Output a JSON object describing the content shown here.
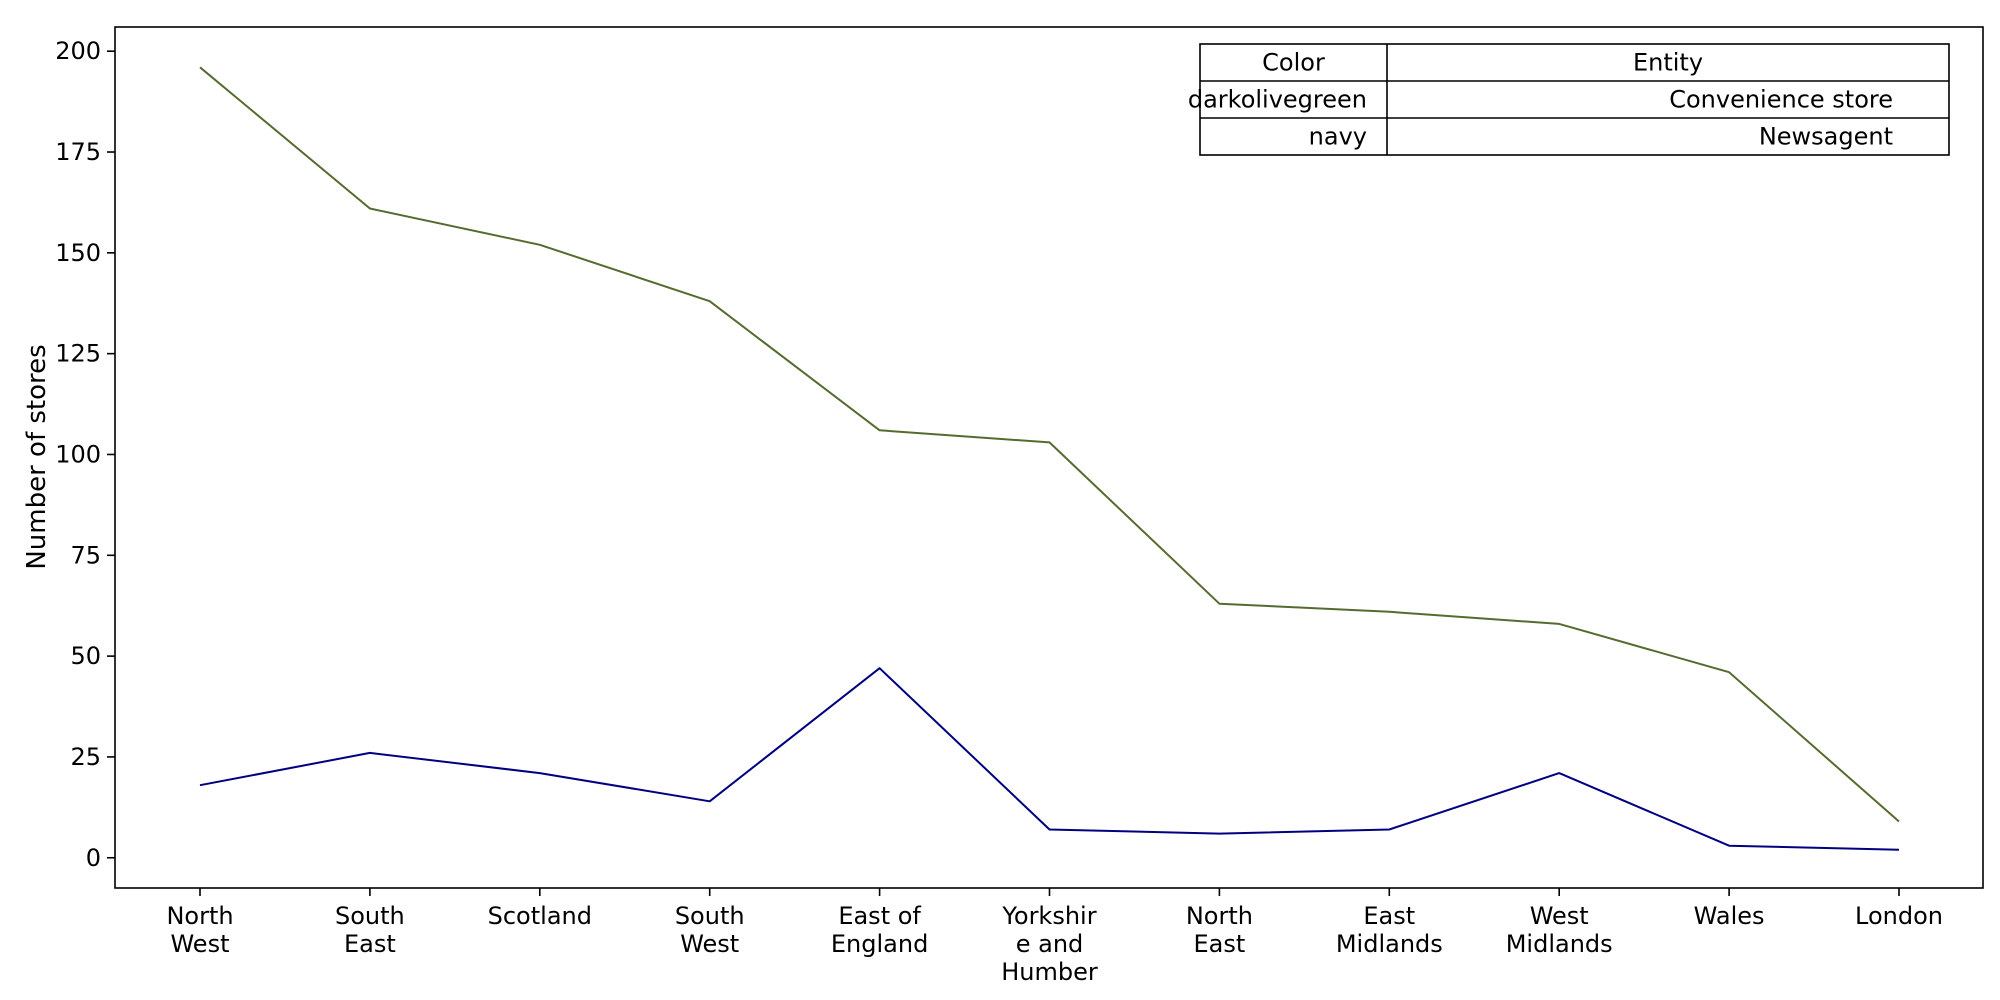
{
  "chart_data": {
    "type": "line",
    "title": "",
    "xlabel": "",
    "ylabel": "Number of stores",
    "ylim": [
      -7.5,
      206
    ],
    "yticks": [
      0,
      25,
      50,
      75,
      100,
      125,
      150,
      175,
      200
    ],
    "grid": false,
    "categories": [
      [
        "North",
        "West"
      ],
      [
        "South",
        "East"
      ],
      [
        "Scotland"
      ],
      [
        "South",
        "West"
      ],
      [
        "East of",
        "England"
      ],
      [
        "Yorkshir",
        "e and",
        "Humber"
      ],
      [
        "North",
        "East"
      ],
      [
        "East",
        "Midlands"
      ],
      [
        "West",
        "Midlands"
      ],
      [
        "Wales"
      ],
      [
        "London"
      ]
    ],
    "series": [
      {
        "name": "Convenience store",
        "color": "#556b2f",
        "values": [
          196,
          161,
          152,
          138,
          106,
          103,
          63,
          61,
          58,
          46,
          9
        ]
      },
      {
        "name": "Newsagent",
        "color": "#000080",
        "values": [
          18,
          26,
          21,
          14,
          47,
          7,
          6,
          7,
          21,
          3,
          2
        ]
      }
    ],
    "legend": {
      "placement": "top-right",
      "header": [
        "Color",
        "Entity"
      ],
      "rows": [
        [
          "darkolivegreen",
          "Convenience store"
        ],
        [
          "navy",
          "Newsagent"
        ]
      ]
    }
  }
}
